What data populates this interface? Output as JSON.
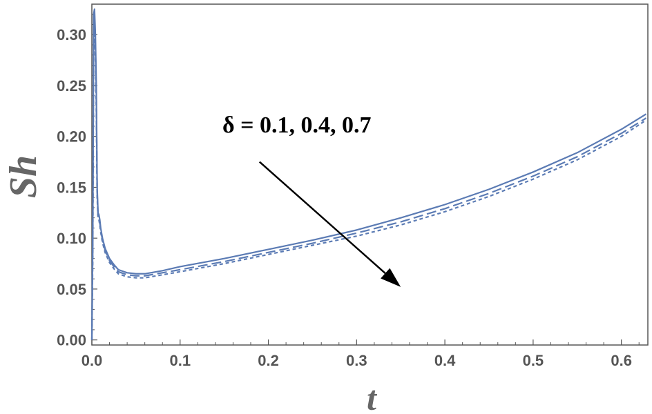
{
  "chart_data": {
    "type": "line",
    "xlabel": "t",
    "ylabel": "Sh",
    "xlim": [
      0.0,
      0.63
    ],
    "ylim": [
      -0.005,
      0.33
    ],
    "x_ticks": [
      "0.0",
      "0.1",
      "0.2",
      "0.3",
      "0.4",
      "0.5",
      "0.6"
    ],
    "y_ticks": [
      "0.00",
      "0.05",
      "0.10",
      "0.15",
      "0.20",
      "0.25",
      "0.30"
    ],
    "annotation": "δ = 0.1,  0.4,  0.7",
    "line_color": "#5b7bb4",
    "series": [
      {
        "dash": "solid",
        "x": [
          0.0,
          0.001,
          0.002,
          0.003,
          0.004,
          0.005,
          0.006,
          0.007,
          0.008,
          0.009,
          0.01,
          0.012,
          0.015,
          0.018,
          0.02,
          0.025,
          0.03,
          0.04,
          0.05,
          0.06,
          0.08,
          0.1,
          0.15,
          0.2,
          0.25,
          0.3,
          0.35,
          0.4,
          0.45,
          0.5,
          0.55,
          0.6,
          0.628
        ],
        "y": [
          0.0,
          0.1,
          0.32,
          0.325,
          0.3,
          0.25,
          0.15,
          0.125,
          0.123,
          0.118,
          0.11,
          0.1,
          0.09,
          0.084,
          0.08,
          0.074,
          0.069,
          0.066,
          0.065,
          0.065,
          0.068,
          0.072,
          0.08,
          0.089,
          0.098,
          0.108,
          0.12,
          0.133,
          0.148,
          0.165,
          0.184,
          0.207,
          0.222
        ]
      },
      {
        "dash": "long-dash",
        "x": [
          0.0,
          0.001,
          0.002,
          0.003,
          0.004,
          0.005,
          0.006,
          0.007,
          0.008,
          0.009,
          0.01,
          0.012,
          0.015,
          0.018,
          0.02,
          0.025,
          0.03,
          0.04,
          0.05,
          0.06,
          0.08,
          0.1,
          0.15,
          0.2,
          0.25,
          0.3,
          0.35,
          0.4,
          0.45,
          0.5,
          0.55,
          0.6,
          0.628
        ],
        "y": [
          0.0,
          0.09,
          0.3,
          0.31,
          0.29,
          0.24,
          0.145,
          0.122,
          0.12,
          0.115,
          0.108,
          0.098,
          0.088,
          0.082,
          0.078,
          0.072,
          0.067,
          0.064,
          0.063,
          0.063,
          0.066,
          0.069,
          0.077,
          0.086,
          0.095,
          0.105,
          0.116,
          0.129,
          0.144,
          0.161,
          0.18,
          0.203,
          0.218
        ]
      },
      {
        "dash": "short-dash",
        "x": [
          0.0,
          0.001,
          0.002,
          0.003,
          0.004,
          0.005,
          0.006,
          0.007,
          0.008,
          0.009,
          0.01,
          0.012,
          0.015,
          0.018,
          0.02,
          0.025,
          0.03,
          0.04,
          0.05,
          0.06,
          0.08,
          0.1,
          0.15,
          0.2,
          0.25,
          0.3,
          0.35,
          0.4,
          0.45,
          0.5,
          0.55,
          0.6,
          0.628
        ],
        "y": [
          0.0,
          0.08,
          0.28,
          0.3,
          0.28,
          0.23,
          0.14,
          0.12,
          0.118,
          0.113,
          0.106,
          0.096,
          0.086,
          0.08,
          0.076,
          0.07,
          0.065,
          0.062,
          0.061,
          0.061,
          0.064,
          0.067,
          0.075,
          0.084,
          0.093,
          0.102,
          0.113,
          0.126,
          0.141,
          0.158,
          0.177,
          0.2,
          0.216
        ]
      }
    ],
    "arrow": {
      "from": [
        0.19,
        0.175
      ],
      "to": [
        0.35,
        0.052
      ]
    }
  }
}
